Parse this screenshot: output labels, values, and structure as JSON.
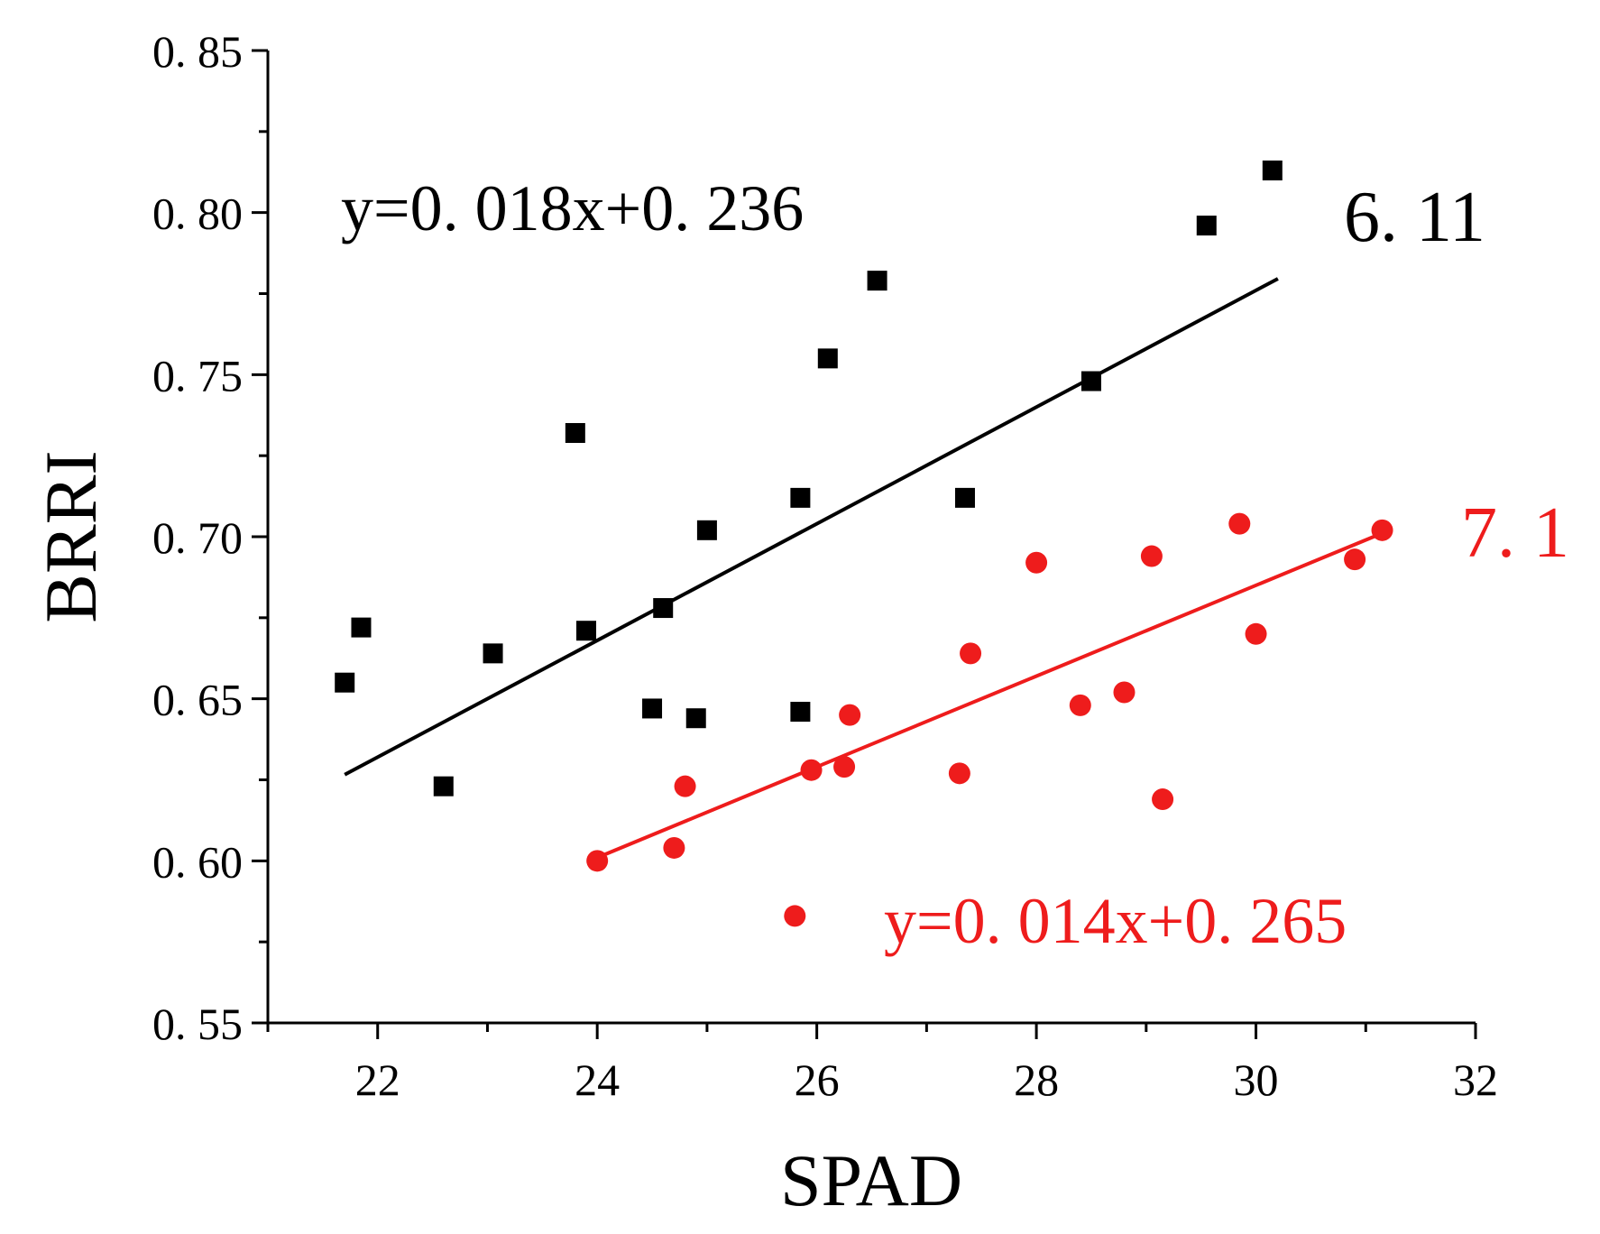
{
  "chart_data": {
    "type": "scatter",
    "title": "",
    "xlabel": "SPAD",
    "ylabel": "BRRI",
    "xlim": [
      21,
      32
    ],
    "ylim": [
      0.55,
      0.85
    ],
    "x_ticks": [
      22,
      24,
      26,
      28,
      30,
      32
    ],
    "x_tick_labels": [
      "22",
      "24",
      "26",
      "28",
      "30",
      "32"
    ],
    "y_ticks": [
      0.55,
      0.6,
      0.65,
      0.7,
      0.75,
      0.8,
      0.85
    ],
    "y_tick_labels": [
      "0. 55",
      "0. 60",
      "0. 65",
      "0. 70",
      "0. 75",
      "0. 80",
      "0. 85"
    ],
    "grid": false,
    "series": [
      {
        "name": "6.11",
        "label": "6. 11",
        "marker": "square",
        "color": "#000000",
        "equation": "y=0. 018x+0. 236",
        "fit": {
          "slope": 0.018,
          "intercept": 0.236,
          "x_range": [
            21.7,
            30.2
          ]
        },
        "points": [
          [
            21.7,
            0.655
          ],
          [
            21.85,
            0.672
          ],
          [
            22.6,
            0.623
          ],
          [
            23.05,
            0.664
          ],
          [
            23.8,
            0.732
          ],
          [
            23.9,
            0.671
          ],
          [
            24.5,
            0.647
          ],
          [
            24.6,
            0.678
          ],
          [
            24.9,
            0.644
          ],
          [
            25.0,
            0.702
          ],
          [
            25.85,
            0.712
          ],
          [
            25.85,
            0.646
          ],
          [
            26.1,
            0.755
          ],
          [
            26.55,
            0.779
          ],
          [
            27.35,
            0.712
          ],
          [
            28.5,
            0.748
          ],
          [
            29.55,
            0.796
          ],
          [
            30.15,
            0.813
          ]
        ]
      },
      {
        "name": "7.1",
        "label": "7. 1",
        "marker": "circle",
        "color": "#ee1c1c",
        "equation": "y=0. 014x+0. 265",
        "fit": {
          "slope": 0.014,
          "intercept": 0.265,
          "x_range": [
            24.0,
            31.15
          ]
        },
        "points": [
          [
            24.0,
            0.6
          ],
          [
            24.7,
            0.604
          ],
          [
            24.8,
            0.623
          ],
          [
            25.8,
            0.583
          ],
          [
            25.95,
            0.628
          ],
          [
            26.25,
            0.629
          ],
          [
            26.3,
            0.645
          ],
          [
            27.3,
            0.627
          ],
          [
            27.4,
            0.664
          ],
          [
            28.0,
            0.692
          ],
          [
            28.4,
            0.648
          ],
          [
            28.8,
            0.652
          ],
          [
            29.05,
            0.694
          ],
          [
            29.15,
            0.619
          ],
          [
            29.85,
            0.704
          ],
          [
            30.0,
            0.67
          ],
          [
            30.9,
            0.693
          ],
          [
            31.15,
            0.702
          ]
        ]
      }
    ]
  }
}
